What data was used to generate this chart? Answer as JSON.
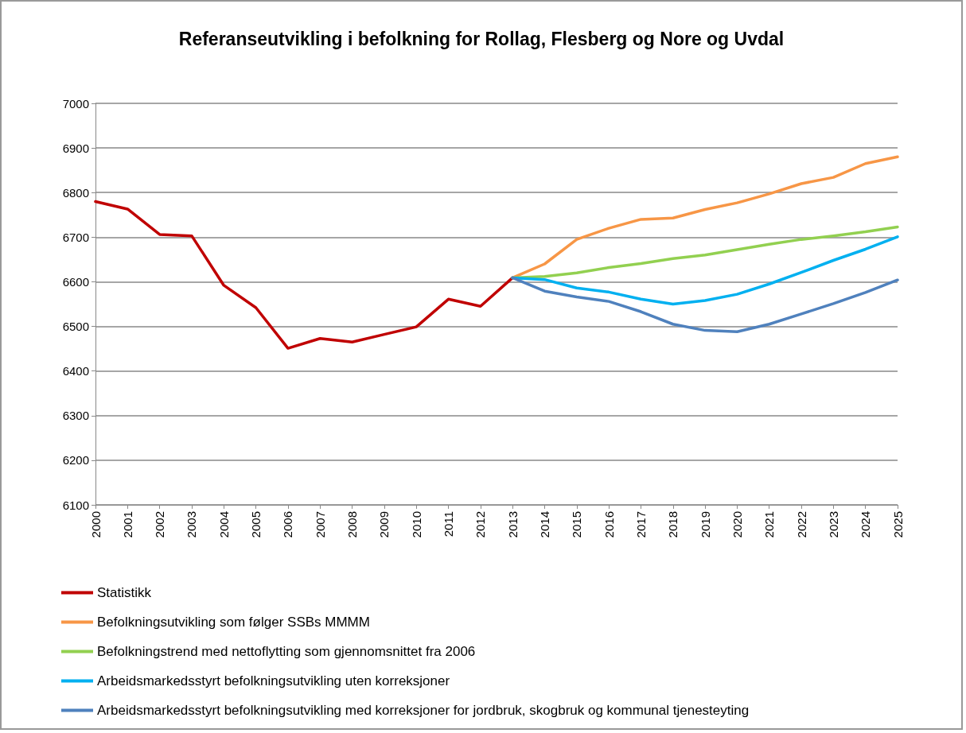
{
  "chart_data": {
    "type": "line",
    "title": "Referanseutvikling i befolkning for Rollag, Flesberg og Nore og Uvdal",
    "categories": [
      "2000",
      "2001",
      "2002",
      "2003",
      "2004",
      "2005",
      "2006",
      "2007",
      "2008",
      "2009",
      "2010",
      "2011",
      "2012",
      "2013",
      "2014",
      "2015",
      "2016",
      "2017",
      "2018",
      "2019",
      "2020",
      "2021",
      "2022",
      "2023",
      "2024",
      "2025"
    ],
    "series": [
      {
        "name": "Statistikk",
        "color": "#c00000",
        "values": [
          6780,
          6763,
          6706,
          6703,
          6592,
          6542,
          6451,
          6473,
          6465,
          6482,
          6499,
          6561,
          6545,
          6609,
          null,
          null,
          null,
          null,
          null,
          null,
          null,
          null,
          null,
          null,
          null,
          null
        ]
      },
      {
        "name": "Befolkningsutvikling som følger SSBs MMMM",
        "color": "#f79646",
        "values": [
          null,
          null,
          null,
          null,
          null,
          null,
          null,
          null,
          null,
          null,
          null,
          null,
          null,
          6609,
          6640,
          6695,
          6720,
          6740,
          6743,
          6762,
          6777,
          6797,
          6820,
          6834,
          6865,
          6880
        ]
      },
      {
        "name": "Befolkningstrend med nettoflytting som gjennomsnittet fra 2006",
        "color": "#92d050",
        "values": [
          null,
          null,
          null,
          null,
          null,
          null,
          null,
          null,
          null,
          null,
          null,
          null,
          null,
          6609,
          6612,
          6620,
          6632,
          6641,
          6652,
          6660,
          6672,
          6684,
          6695,
          6703,
          6712,
          6723
        ]
      },
      {
        "name": "Arbeidsmarkedsstyrt befolkningsutvikling uten korreksjoner",
        "color": "#00b0f0",
        "values": [
          null,
          null,
          null,
          null,
          null,
          null,
          null,
          null,
          null,
          null,
          null,
          null,
          null,
          6609,
          6605,
          6586,
          6577,
          6561,
          6550,
          6558,
          6572,
          6595,
          6621,
          6648,
          6673,
          6701
        ]
      },
      {
        "name": "Arbeidsmarkedsstyrt befolkningsutvikling med korreksjoner for jordbruk, skogbruk og kommunal tjenesteyting",
        "color": "#4f81bd",
        "values": [
          null,
          null,
          null,
          null,
          null,
          null,
          null,
          null,
          null,
          null,
          null,
          null,
          null,
          6609,
          6579,
          6566,
          6556,
          6533,
          6505,
          6491,
          6488,
          6505,
          6528,
          6551,
          6576,
          6604
        ]
      }
    ],
    "ylim": [
      6100,
      7000
    ],
    "yticks": [
      6100,
      6200,
      6300,
      6400,
      6500,
      6600,
      6700,
      6800,
      6900,
      7000
    ],
    "grid": "y",
    "legend": "bottom",
    "marker": "none",
    "line_style": "solid"
  }
}
